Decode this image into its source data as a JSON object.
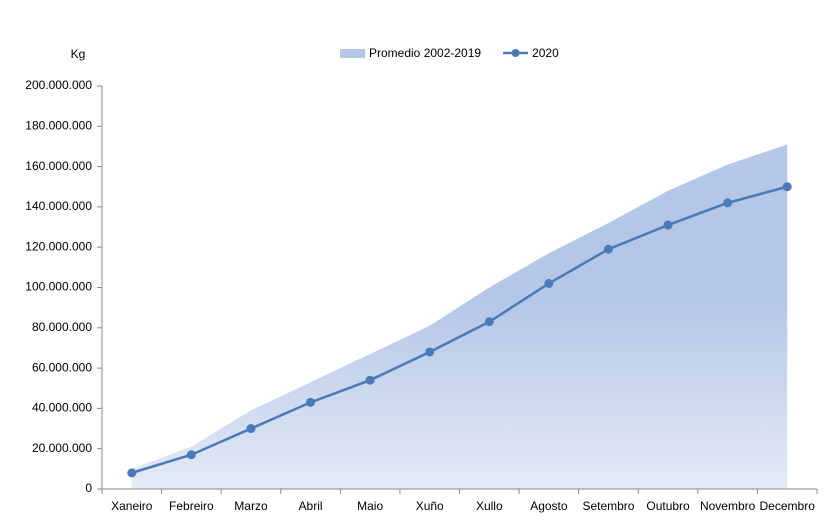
{
  "chart_data": {
    "type": "area-line",
    "y_label": "Kg",
    "categories": [
      "Xaneiro",
      "Febreiro",
      "Marzo",
      "Abril",
      "Maio",
      "Xuño",
      "Xullo",
      "Agosto",
      "Setembro",
      "Outubro",
      "Novembro",
      "Decembro"
    ],
    "series": [
      {
        "name": "Promedio 2002-2019",
        "type": "area",
        "color": "#b4c7e7",
        "values": [
          10000000,
          21000000,
          39000000,
          53000000,
          67000000,
          81000000,
          100000000,
          117000000,
          132000000,
          148000000,
          161000000,
          171000000
        ]
      },
      {
        "name": "2020",
        "type": "line",
        "color": "#4a7ab8",
        "values": [
          8000000,
          17000000,
          30000000,
          43000000,
          54000000,
          68000000,
          83000000,
          102000000,
          119000000,
          131000000,
          142000000,
          150000000
        ]
      }
    ],
    "ylim": [
      0,
      200000000
    ],
    "yticks": [
      0,
      {
        "value": 20000000,
        "label": "20.000.000"
      },
      {
        "value": 40000000,
        "label": "40.000.000"
      },
      {
        "value": 60000000,
        "label": "60.000.000"
      },
      {
        "value": 80000000,
        "label": "80.000.000"
      },
      {
        "value": 100000000,
        "label": "100.000.000"
      },
      {
        "value": 120000000,
        "label": "120.000.000"
      },
      {
        "value": 140000000,
        "label": "140.000.000"
      },
      {
        "value": 160000000,
        "label": "160.000.000"
      },
      {
        "value": 180000000,
        "label": "180.000.000"
      },
      {
        "value": 200000000,
        "label": "200.000.000"
      }
    ],
    "grid": false,
    "legend": "top"
  }
}
